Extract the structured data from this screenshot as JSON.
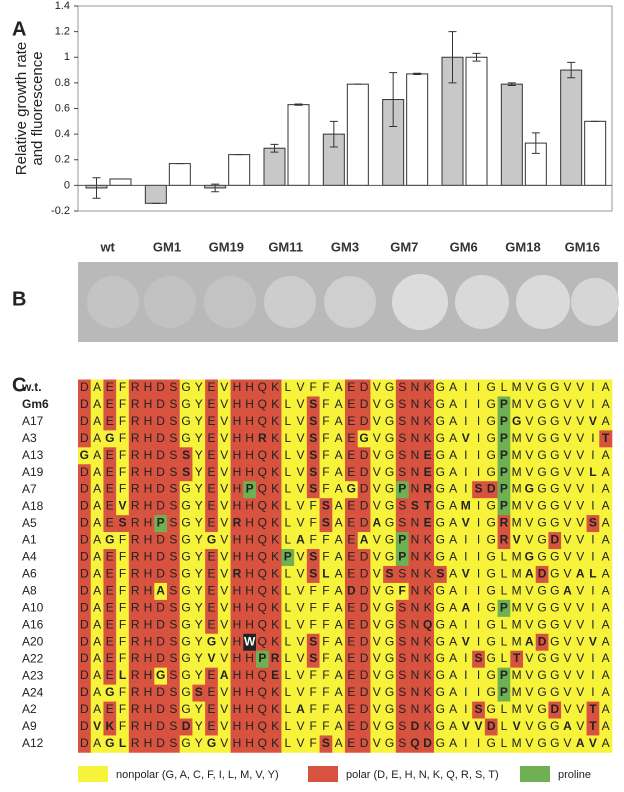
{
  "panels": [
    "A",
    "B",
    "C"
  ],
  "chart_data": {
    "type": "bar",
    "ylabel": [
      "Relative growth rate",
      "and fluorescence"
    ],
    "categories": [
      "wt",
      "GM1",
      "GM19",
      "GM11",
      "GM3",
      "GM7",
      "GM6",
      "GM18",
      "GM16"
    ],
    "series": [
      {
        "color": "#c8c8c8",
        "values": [
          -0.02,
          -0.14,
          -0.02,
          0.29,
          0.4,
          0.67,
          1.0,
          0.79,
          0.9
        ],
        "errors": [
          0.08,
          0,
          0.03,
          0.03,
          0.1,
          0.21,
          0.2,
          0.01,
          0.06
        ]
      },
      {
        "color": "#ffffff",
        "values": [
          0.05,
          0.17,
          0.24,
          0.63,
          0.79,
          0.87,
          1.0,
          0.33,
          0.5
        ],
        "errors": [
          0,
          0,
          0,
          0.005,
          0,
          0.005,
          0.03,
          0.08,
          0
        ]
      }
    ],
    "ylim": [
      -0.2,
      1.4
    ],
    "yticks": [
      -0.2,
      0,
      0.2,
      0.4,
      0.6,
      0.8,
      1,
      1.2,
      1.4
    ]
  },
  "alignment": {
    "rows": [
      {
        "label": "w.t.",
        "sequence": "DAEFRHDSGYEVHHQKLVFFAEDVGSNKGAIIGLMVGGVVIA"
      },
      {
        "label": "Gm6",
        "sequence": "DAEFRHDSGYEVHHQKLVSFAEDVGSNKGAIIGPMVGGVVIA"
      },
      {
        "label": "A17",
        "sequence": "DAEFRHDSGYEVHHQKLVSFAEDVGSNKGAIIGPGVGGVVVA"
      },
      {
        "label": "A3",
        "sequence": "DAGFRHDSGYEVHHRKLVSFAEGVGSNKGAVIGPMVGGVVIT"
      },
      {
        "label": "A13",
        "sequence": "GAEFRHDSSYEVHHQKLVSFAEDVGSNEGAIIGPMVGGVVIA"
      },
      {
        "label": "A19",
        "sequence": "DAEFRHDSSYEVHHQKLVSFAEDVGSNEGAIIGPMVGGVVLA"
      },
      {
        "label": "A7",
        "sequence": "DAEFRHDSGYEVHPQKLVSFAGDVGPNRGAISDPMGGGVVIA"
      },
      {
        "label": "A18",
        "sequence": "DAEVRHDSGYEVHHQKLVFSAEDVGSSTGAMIGPMVGGVVIA"
      },
      {
        "label": "A5",
        "sequence": "DAESRHPSGYEVRHQKLVFSAEDAGSNEGAVIGRMVGGVVSA"
      },
      {
        "label": "A1",
        "sequence": "DAGFRHDSGYGVHHQKLAFFAEAVGPNKGAIIGRVVGDVVIA"
      },
      {
        "label": "A4",
        "sequence": "DAEFRHDSGYEVHHQKPVSFAEDVGPNKGAIIGLMGGGVVIA"
      },
      {
        "label": "A6",
        "sequence": "DAEFRHDSGYEVRHQKLVSLAEDVSSNKSAVIGLMADGVALA"
      },
      {
        "label": "A8",
        "sequence": "DAEFRHASGYEVHHQKLVFFADDVGFNKGAIIGLMVGGAVIA"
      },
      {
        "label": "A10",
        "sequence": "DAEFRHDSGYEVHHQKLVFFAEDVGSNKGAAIGPMVGGVVIA"
      },
      {
        "label": "A16",
        "sequence": "DAEFRHDSGYEVHHQKLVFFAEDVGSNQGAIIGLMVGGVVIA"
      },
      {
        "label": "A20",
        "sequence": "DAEFRHDSGYGVHWQKLVSFAEDVGSNKGAVIGLMADGVVVA"
      },
      {
        "label": "A22",
        "sequence": "DAEFRHDSGYVVHHPRLVSFAEDVGSNKGAISGLTVGGVVIA"
      },
      {
        "label": "A23",
        "sequence": "DAELRHGSGYEAHHQELVFFAEDVGSNKGAIIGPMVGGVVIA"
      },
      {
        "label": "A24",
        "sequence": "DAGFRHDSGSEVHHQKLVFFAEDVGSNKGAIIGPMVGGVVIA"
      },
      {
        "label": "A2",
        "sequence": "DAEFRHDSGYEVHHQKLAFFAEDVGSNKGAISGLMVGDVVTA"
      },
      {
        "label": "A9",
        "sequence": "DVKFRHDSDYEVHHQKLVFFAEDVGSDKGAVVDLVVGGAVTA"
      },
      {
        "label": "A12",
        "sequence": "DAGLRHDSGYGVHHQKLVFSAEDVGSQDGAIIGLMVGGVAVA"
      }
    ]
  },
  "legend": [
    {
      "label": "nonpolar (G, A, C, F, I, L, M, V, Y)",
      "color": "#f7f23a"
    },
    {
      "label": "polar (D, E, H, N, K, Q, R, S, T)",
      "color": "#d8533f"
    },
    {
      "label": "proline",
      "color": "#6fb152"
    }
  ]
}
